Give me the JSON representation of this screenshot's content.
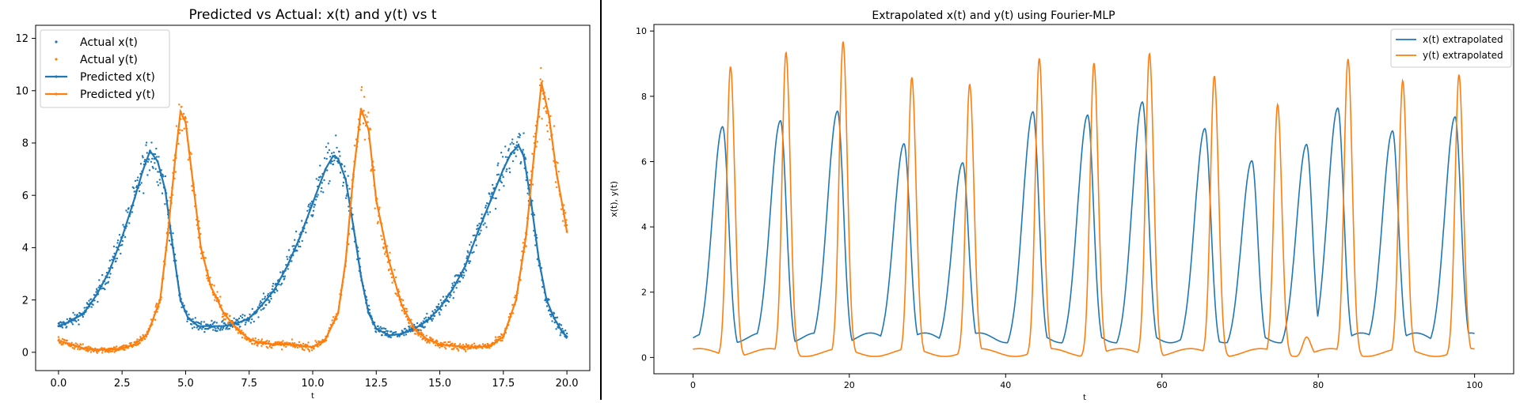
{
  "chart_data": [
    {
      "type": "scatter",
      "title": "Predicted vs Actual: x(t) and y(t) vs t",
      "xlabel": "t",
      "ylabel": "",
      "xlim": [
        -0.9,
        20.9
      ],
      "ylim": [
        -0.7,
        12.5
      ],
      "xticks": [
        0.0,
        2.5,
        5.0,
        7.5,
        10.0,
        12.5,
        15.0,
        17.5,
        20.0
      ],
      "xtick_labels": [
        "0.0",
        "2.5",
        "5.0",
        "7.5",
        "10.0",
        "12.5",
        "15.0",
        "17.5",
        "20.0"
      ],
      "yticks": [
        0,
        2,
        4,
        6,
        8,
        10,
        12
      ],
      "ytick_labels": [
        "0",
        "2",
        "4",
        "6",
        "8",
        "10",
        "12"
      ],
      "grid": false,
      "legend": "upper-left",
      "series": [
        {
          "name": "Actual x(t)",
          "kind": "scatter",
          "color": "#1f77b4",
          "ref": "x_true"
        },
        {
          "name": "Actual y(t)",
          "kind": "scatter",
          "color": "#ff7f0e",
          "ref": "y_true"
        },
        {
          "name": "Predicted x(t)",
          "kind": "line",
          "color": "#1f77b4",
          "x": [
            0,
            0.5,
            1,
            1.5,
            2,
            2.5,
            3,
            3.3,
            3.6,
            3.9,
            4.2,
            4.5,
            4.8,
            5.1,
            5.5,
            6,
            6.5,
            7,
            7.5,
            8,
            8.5,
            9,
            9.5,
            10,
            10.5,
            10.8,
            11,
            11.3,
            11.6,
            11.9,
            12.2,
            12.5,
            13,
            13.5,
            14,
            14.5,
            15,
            15.5,
            16,
            16.5,
            17,
            17.5,
            17.8,
            18.1,
            18.3,
            18.6,
            18.9,
            19.2,
            19.5,
            19.8,
            20
          ],
          "y": [
            1.0,
            1.2,
            1.5,
            2.2,
            3.1,
            4.4,
            5.9,
            6.9,
            7.7,
            7.3,
            6.2,
            4.0,
            2.0,
            1.3,
            1.0,
            1.0,
            1.0,
            1.1,
            1.3,
            1.8,
            2.4,
            3.3,
            4.4,
            5.7,
            7.0,
            7.5,
            7.4,
            6.6,
            4.8,
            2.9,
            1.5,
            0.9,
            0.65,
            0.7,
            0.9,
            1.2,
            1.7,
            2.4,
            3.3,
            4.6,
            5.8,
            7.0,
            7.6,
            7.9,
            7.5,
            5.7,
            3.5,
            2.0,
            1.3,
            0.8,
            0.6
          ]
        },
        {
          "name": "Predicted y(t)",
          "kind": "line",
          "color": "#ff7f0e",
          "x": [
            0,
            0.5,
            1,
            1.5,
            2,
            2.5,
            3,
            3.5,
            4,
            4.3,
            4.6,
            4.8,
            5.0,
            5.3,
            5.6,
            6,
            6.5,
            7,
            7.5,
            8,
            8.5,
            9,
            9.5,
            10,
            10.5,
            11,
            11.3,
            11.6,
            11.9,
            12.2,
            12.5,
            13,
            13.5,
            14,
            14.5,
            15,
            15.5,
            16,
            16.5,
            17,
            17.5,
            18,
            18.4,
            18.7,
            19.0,
            19.3,
            19.6,
            19.9,
            20
          ],
          "y": [
            0.45,
            0.3,
            0.15,
            0.1,
            0.1,
            0.15,
            0.3,
            0.7,
            2.0,
            4.5,
            7.5,
            9.2,
            8.8,
            6.4,
            4.0,
            2.5,
            1.5,
            0.9,
            0.5,
            0.35,
            0.3,
            0.3,
            0.25,
            0.2,
            0.5,
            1.5,
            3.5,
            6.8,
            9.3,
            8.5,
            5.8,
            3.5,
            1.8,
            0.9,
            0.5,
            0.3,
            0.25,
            0.2,
            0.2,
            0.25,
            0.6,
            2.0,
            4.5,
            7.5,
            10.3,
            9.0,
            6.8,
            5.2,
            4.6
          ]
        }
      ]
    },
    {
      "type": "line",
      "title": "Extrapolated x(t) and y(t) using Fourier-MLP",
      "xlabel": "t",
      "ylabel": "x(t), y(t)",
      "xlim": [
        -5,
        105
      ],
      "ylim": [
        -0.5,
        10.2
      ],
      "xticks": [
        0,
        20,
        40,
        60,
        80,
        100
      ],
      "xtick_labels": [
        "0",
        "20",
        "40",
        "60",
        "80",
        "100"
      ],
      "yticks": [
        0,
        2,
        4,
        6,
        8,
        10
      ],
      "ytick_labels": [
        "0",
        "2",
        "4",
        "6",
        "8",
        "10"
      ],
      "grid": false,
      "legend": "upper-right",
      "x_range": [
        0,
        100
      ],
      "series": [
        {
          "name": "x(t) extrapolated",
          "color": "#1f77b4",
          "peaks_t": [
            3.8,
            11.2,
            18.5,
            27.0,
            34.5,
            43.5,
            50.5,
            57.5,
            65.5,
            71.5,
            78.5,
            82.5,
            89.5,
            97.5
          ],
          "peaks_value": [
            6.9,
            7.1,
            7.4,
            6.4,
            5.8,
            7.3,
            7.2,
            7.6,
            6.8,
            5.8,
            6.3,
            7.5,
            6.8,
            7.2
          ]
        },
        {
          "name": "y(t) extrapolated",
          "color": "#ff7f0e",
          "peaks_t": [
            4.8,
            11.9,
            19.2,
            28.0,
            35.4,
            44.3,
            51.3,
            58.4,
            66.7,
            74.8,
            78.5,
            83.8,
            90.8,
            98.0
          ],
          "peaks_value": [
            8.9,
            9.3,
            9.6,
            8.5,
            8.3,
            9.1,
            9.0,
            9.3,
            8.6,
            7.7,
            0.6,
            9.1,
            8.4,
            8.6
          ]
        }
      ]
    }
  ]
}
